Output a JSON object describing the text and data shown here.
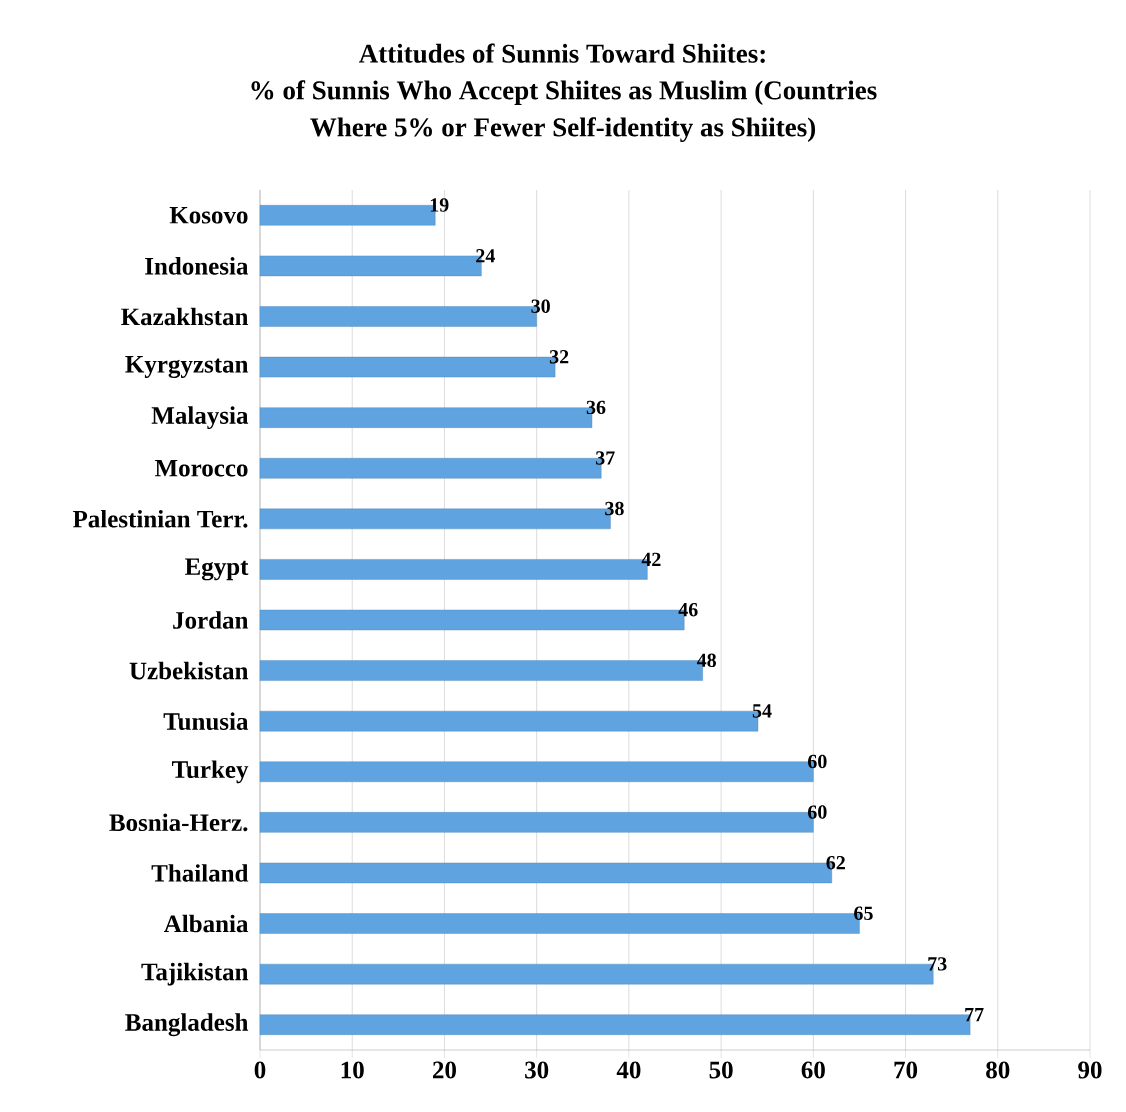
{
  "chart_data": {
    "type": "bar",
    "orientation": "horizontal",
    "title": "Attitudes of Sunnis Toward Shiites:",
    "subtitle": "% of Sunnis Who Accept Shiites as Muslim (Countries Where 5% or Fewer Self-identity as Shiites)",
    "categories": [
      "Kosovo",
      "Indonesia",
      "Kazakhstan",
      "Kyrgyzstan",
      "Malaysia",
      "Morocco",
      "Palestinian Terr.",
      "Egypt",
      "Jordan",
      "Uzbekistan",
      "Tunusia",
      "Turkey",
      "Bosnia-Herz.",
      "Thailand",
      "Albania",
      "Tajikistan",
      "Bangladesh"
    ],
    "values": [
      19,
      24,
      30,
      32,
      36,
      37,
      38,
      42,
      46,
      48,
      54,
      60,
      60,
      62,
      65,
      73,
      77
    ],
    "color": "#5fa4e0",
    "xlim": [
      0,
      90
    ],
    "xticks": [
      0,
      10,
      20,
      30,
      40,
      50,
      60,
      70,
      80,
      90
    ],
    "grid": "x",
    "data_labels": true
  }
}
